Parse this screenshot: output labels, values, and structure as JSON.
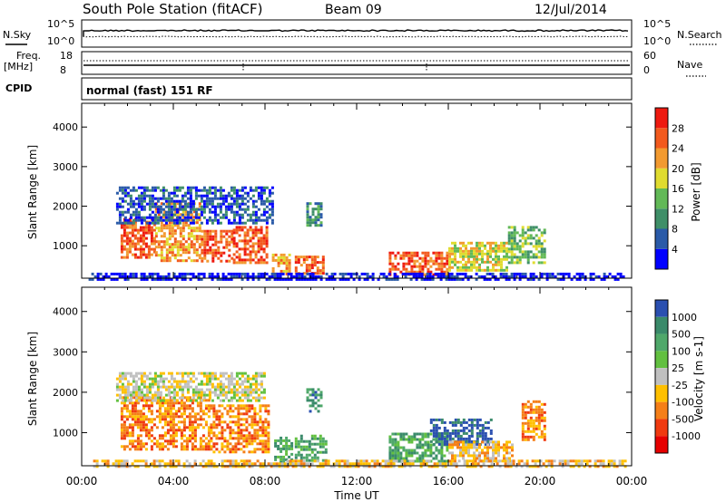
{
  "header": {
    "station": "South Pole Station (fitACF)",
    "beam": "Beam 09",
    "date": "12/Jul/2014"
  },
  "params": {
    "nsky_label": "N.Sky",
    "nsearch_label": "N.Search",
    "nsky_ticks": [
      "10^5",
      "10^0"
    ],
    "nsearch_ticks": [
      "10^5",
      "10^0"
    ],
    "freq_label_line1": "Freq.",
    "freq_label_line2": "[MHz]",
    "freq_ticks": [
      "18",
      "8"
    ],
    "nave_label": "Nave",
    "nave_ticks": [
      "60",
      "0"
    ],
    "cpid_label": "CPID",
    "cpid_value": "normal (fast) 151 RF"
  },
  "chart_data": [
    {
      "type": "heatmap",
      "panel": "power",
      "xlabel": "",
      "ylabel": "Slant Range [km]",
      "y_ticks": [
        "1000",
        "2000",
        "3000",
        "4000"
      ],
      "ylim": [
        180,
        4600
      ],
      "xlim": [
        0,
        24
      ],
      "colorbar_label": "Power [dB]",
      "colorbar_ticks": [
        "4",
        "8",
        "12",
        "16",
        "20",
        "24",
        "28"
      ],
      "colorbar_colors": [
        "#0000ff",
        "#2a5aa8",
        "#3f8f68",
        "#62b957",
        "#e0dc30",
        "#f29a30",
        "#f25a1e",
        "#ee1a10"
      ],
      "regions": [
        {
          "t0": 1.7,
          "t1": 3.2,
          "r0": 700,
          "r1": 1700,
          "level": 6
        },
        {
          "t0": 3.2,
          "t1": 5.2,
          "r0": 600,
          "r1": 2100,
          "level": 5
        },
        {
          "t0": 5.2,
          "t1": 6.6,
          "r0": 600,
          "r1": 1400,
          "level": 6
        },
        {
          "t0": 6.6,
          "t1": 8.1,
          "r0": 600,
          "r1": 1500,
          "level": 6
        },
        {
          "t0": 8.3,
          "t1": 9.1,
          "r0": 300,
          "r1": 800,
          "level": 5
        },
        {
          "t0": 9.3,
          "t1": 10.6,
          "r0": 300,
          "r1": 750,
          "level": 6
        },
        {
          "t0": 13.4,
          "t1": 16.0,
          "r0": 300,
          "r1": 850,
          "level": 6
        },
        {
          "t0": 16.0,
          "t1": 18.6,
          "r0": 400,
          "r1": 1100,
          "level": 4
        },
        {
          "t0": 18.6,
          "t1": 20.2,
          "r0": 600,
          "r1": 1500,
          "level": 3
        },
        {
          "t0": 1.5,
          "t1": 8.3,
          "r0": 1600,
          "r1": 2500,
          "level": 1
        },
        {
          "t0": 9.8,
          "t1": 10.4,
          "r0": 1500,
          "r1": 2100,
          "level": 2
        },
        {
          "t0": 0.3,
          "t1": 23.7,
          "r0": 180,
          "r1": 320,
          "level": 0
        }
      ]
    },
    {
      "type": "heatmap",
      "panel": "velocity",
      "xlabel": "Time UT",
      "ylabel": "Slant Range [km]",
      "x_ticks": [
        "00:00",
        "04:00",
        "08:00",
        "12:00",
        "16:00",
        "20:00",
        "00:00"
      ],
      "y_ticks": [
        "1000",
        "2000",
        "3000",
        "4000"
      ],
      "ylim": [
        180,
        4600
      ],
      "xlim": [
        0,
        24
      ],
      "colorbar_label": "Velocity [m s-1]",
      "colorbar_ticks": [
        "1000",
        "500",
        "100",
        "25",
        "-25",
        "-100",
        "-500",
        "-1000"
      ],
      "colorbar_colors": [
        "#2a4fb0",
        "#3a8a6a",
        "#4fa86a",
        "#62c040",
        "#c0c0c0",
        "#ffc000",
        "#f57f18",
        "#f03a10",
        "#e60000"
      ],
      "regions": [
        {
          "t0": 1.7,
          "t1": 5.6,
          "r0": 600,
          "r1": 1900,
          "level": 6
        },
        {
          "t0": 5.6,
          "t1": 8.2,
          "r0": 500,
          "r1": 1700,
          "level": 6
        },
        {
          "t0": 1.5,
          "t1": 8.0,
          "r0": 1800,
          "r1": 2500,
          "level": 4
        },
        {
          "t0": 8.4,
          "t1": 9.2,
          "r0": 280,
          "r1": 900,
          "level": 2
        },
        {
          "t0": 9.3,
          "t1": 10.7,
          "r0": 300,
          "r1": 950,
          "level": 2
        },
        {
          "t0": 9.8,
          "t1": 10.5,
          "r0": 1500,
          "r1": 2100,
          "level": 1
        },
        {
          "t0": 13.4,
          "t1": 16.0,
          "r0": 300,
          "r1": 1000,
          "level": 2
        },
        {
          "t0": 15.2,
          "t1": 17.9,
          "r0": 700,
          "r1": 1350,
          "level": 0
        },
        {
          "t0": 16.0,
          "t1": 18.8,
          "r0": 300,
          "r1": 800,
          "level": 5
        },
        {
          "t0": 19.2,
          "t1": 20.2,
          "r0": 800,
          "r1": 1800,
          "level": 6
        },
        {
          "t0": 0.5,
          "t1": 23.7,
          "r0": 180,
          "r1": 330,
          "level": 5
        }
      ]
    }
  ]
}
